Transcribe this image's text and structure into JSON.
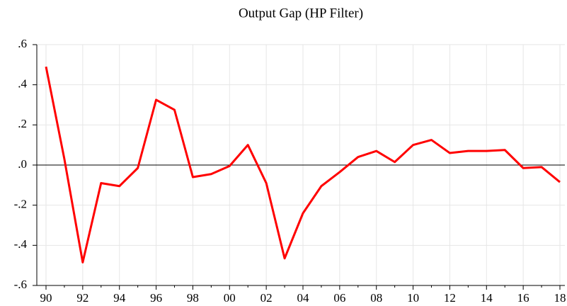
{
  "chart_data": {
    "type": "line",
    "title": "Output Gap (HP Filter)",
    "categories": [
      "90",
      null,
      "92",
      null,
      "94",
      null,
      "96",
      null,
      "98",
      null,
      "00",
      null,
      "02",
      null,
      "04",
      null,
      "06",
      null,
      "08",
      null,
      "10",
      null,
      "12",
      null,
      "14",
      null,
      "16",
      null,
      "18"
    ],
    "values": [
      0.49,
      0.03,
      -0.485,
      -0.09,
      -0.105,
      -0.015,
      0.325,
      0.275,
      -0.06,
      -0.045,
      -0.005,
      0.1,
      -0.09,
      -0.465,
      -0.24,
      -0.105,
      -0.035,
      0.04,
      0.07,
      0.015,
      0.1,
      0.125,
      0.06,
      0.07,
      0.07,
      0.075,
      -0.015,
      -0.01,
      -0.085
    ],
    "color": "#ff0000",
    "ylim": [
      -0.6,
      0.6
    ],
    "yticks": [
      {
        "value": 0.6,
        "label": ".6"
      },
      {
        "value": 0.4,
        "label": ".4"
      },
      {
        "value": 0.2,
        "label": ".2"
      },
      {
        "value": 0,
        "label": ".0"
      },
      {
        "value": -0.2,
        "label": "-.2"
      },
      {
        "value": -0.4,
        "label": "-.4"
      },
      {
        "value": -0.6,
        "label": "-.6"
      }
    ],
    "grid": true,
    "zero_line": true
  }
}
